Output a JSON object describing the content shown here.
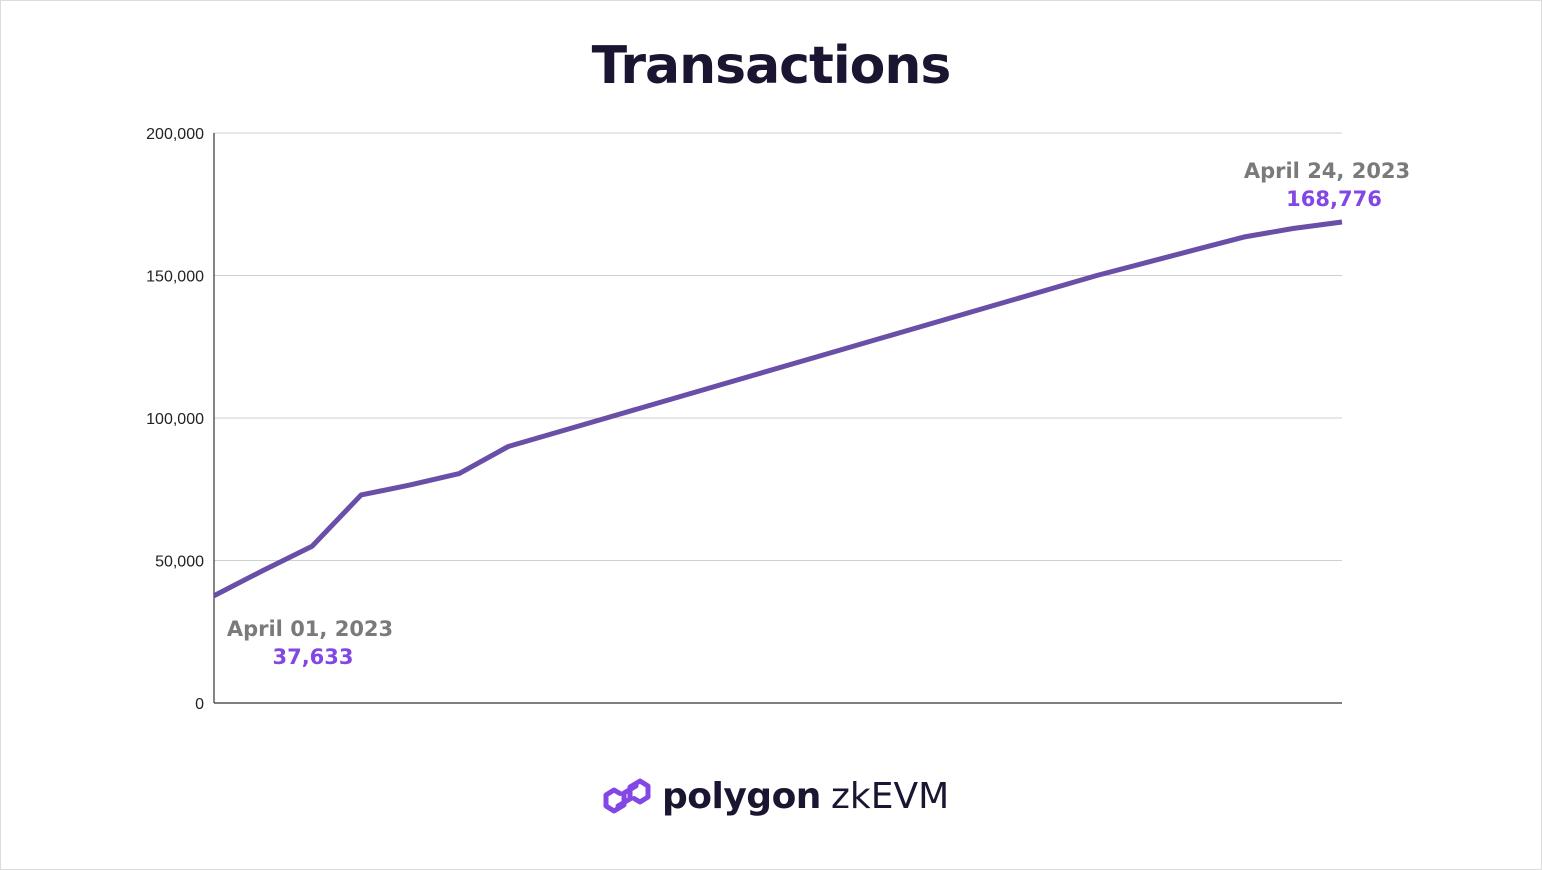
{
  "colors": {
    "line": "#6a4fa8",
    "accent_value": "#8247e5",
    "annotation_date": "#7a7a7a",
    "title": "#1c1532",
    "grid": "#cfcfcf"
  },
  "chart_data": {
    "type": "line",
    "title": "Transactions",
    "xlabel": "",
    "ylabel": "",
    "ylim": [
      0,
      200000
    ],
    "yticks": [
      0,
      50000,
      100000,
      150000,
      200000
    ],
    "ytick_labels": [
      "0",
      "50,000",
      "100,000",
      "150,000",
      "200,000"
    ],
    "grid": true,
    "x": [
      "2023-04-01",
      "2023-04-02",
      "2023-04-03",
      "2023-04-04",
      "2023-04-05",
      "2023-04-06",
      "2023-04-07",
      "2023-04-08",
      "2023-04-09",
      "2023-04-10",
      "2023-04-11",
      "2023-04-12",
      "2023-04-13",
      "2023-04-14",
      "2023-04-15",
      "2023-04-16",
      "2023-04-17",
      "2023-04-18",
      "2023-04-19",
      "2023-04-20",
      "2023-04-21",
      "2023-04-22",
      "2023-04-23",
      "2023-04-24"
    ],
    "series": [
      {
        "values": [
          37633,
          46500,
          55000,
          73000,
          76500,
          80500,
          90000,
          95000,
          100000,
          105000,
          110000,
          115000,
          120000,
          125000,
          130000,
          135000,
          140000,
          145000,
          150000,
          154500,
          159000,
          163500,
          166500,
          168776
        ]
      }
    ],
    "annotations": [
      {
        "date": "April 01, 2023",
        "value": "37,633"
      },
      {
        "date": "April 24, 2023",
        "value": "168,776"
      }
    ]
  },
  "branding": {
    "icon": "polygon-logo-icon",
    "name": "polygon",
    "product": "zkEVM"
  }
}
